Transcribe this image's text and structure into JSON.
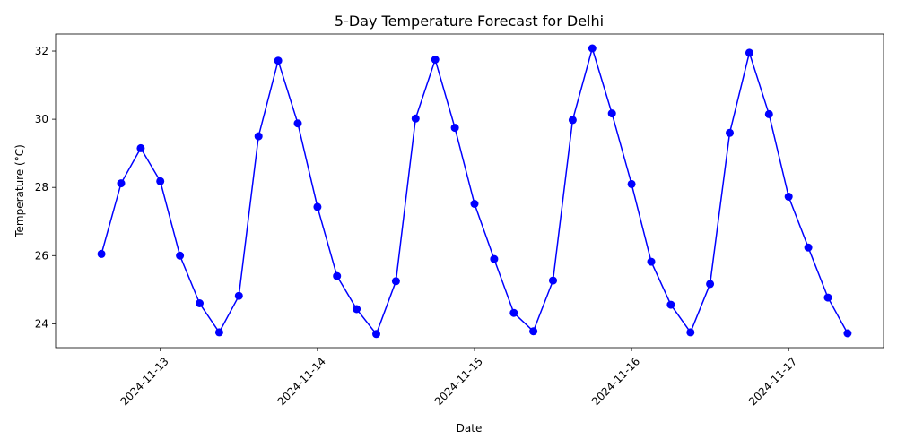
{
  "chart_data": {
    "type": "line",
    "title": "5-Day Temperature Forecast for Delhi",
    "xlabel": "Date",
    "ylabel": "Temperature (°C)",
    "x_ticks": [
      "2024-11-13",
      "2024-11-14",
      "2024-11-15",
      "2024-11-16",
      "2024-11-17"
    ],
    "y_ticks": [
      24,
      26,
      28,
      30,
      32
    ],
    "ylim": [
      23.3,
      32.5
    ],
    "xlim": [
      "2024-11-12 08:00",
      "2024-11-17 14:30"
    ],
    "grid": false,
    "legend": "none",
    "series": [
      {
        "color": "#0000ff",
        "marker": "circle",
        "x": [
          "2024-11-12 15:00",
          "2024-11-12 18:00",
          "2024-11-12 21:00",
          "2024-11-13 00:00",
          "2024-11-13 03:00",
          "2024-11-13 06:00",
          "2024-11-13 09:00",
          "2024-11-13 12:00",
          "2024-11-13 15:00",
          "2024-11-13 18:00",
          "2024-11-13 21:00",
          "2024-11-14 00:00",
          "2024-11-14 03:00",
          "2024-11-14 06:00",
          "2024-11-14 09:00",
          "2024-11-14 12:00",
          "2024-11-14 15:00",
          "2024-11-14 18:00",
          "2024-11-14 21:00",
          "2024-11-15 00:00",
          "2024-11-15 03:00",
          "2024-11-15 06:00",
          "2024-11-15 09:00",
          "2024-11-15 12:00",
          "2024-11-15 15:00",
          "2024-11-15 18:00",
          "2024-11-15 21:00",
          "2024-11-16 00:00",
          "2024-11-16 03:00",
          "2024-11-16 06:00",
          "2024-11-16 09:00",
          "2024-11-16 12:00",
          "2024-11-16 15:00",
          "2024-11-16 18:00",
          "2024-11-16 21:00",
          "2024-11-17 00:00",
          "2024-11-17 03:00",
          "2024-11-17 06:00",
          "2024-11-17 09:00"
        ],
        "y": [
          26.05,
          28.12,
          29.15,
          28.18,
          26.0,
          24.6,
          23.75,
          24.82,
          29.5,
          31.72,
          29.88,
          27.43,
          25.4,
          24.43,
          23.7,
          25.25,
          30.02,
          31.75,
          29.75,
          27.52,
          25.9,
          24.32,
          23.78,
          25.27,
          29.98,
          32.08,
          30.17,
          28.1,
          25.82,
          24.56,
          23.75,
          25.17,
          29.6,
          31.95,
          30.15,
          27.73,
          26.24,
          24.77,
          23.72
        ]
      }
    ]
  }
}
